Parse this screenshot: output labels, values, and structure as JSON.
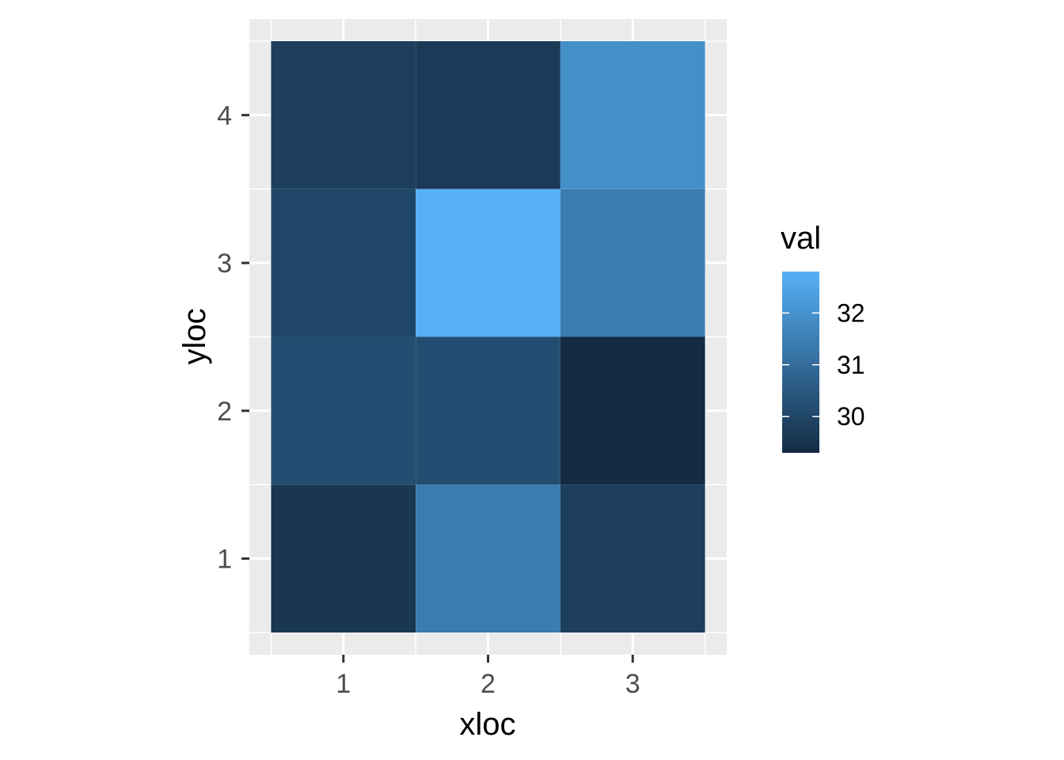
{
  "chart_data": {
    "type": "heatmap",
    "x": [
      1,
      2,
      3
    ],
    "y": [
      1,
      2,
      3,
      4
    ],
    "x_tick_labels": [
      "1",
      "2",
      "3"
    ],
    "y_tick_labels": [
      "1",
      "2",
      "3",
      "4"
    ],
    "xlabel": "xloc",
    "ylabel": "yloc",
    "legend_title": "val",
    "legend_placement": "right",
    "legend_ticks": [
      {
        "value": 30,
        "label": "30"
      },
      {
        "value": 31,
        "label": "31"
      },
      {
        "value": 32,
        "label": "32"
      }
    ],
    "color_range": [
      29.3,
      32.8
    ],
    "color_low": "#132B43",
    "color_high": "#56B1F7",
    "panel_background": "#EBEBEB",
    "grid": true,
    "cells": [
      {
        "x": 1,
        "y": 1,
        "value": 29.6
      },
      {
        "x": 2,
        "y": 1,
        "value": 31.4
      },
      {
        "x": 3,
        "y": 1,
        "value": 29.8
      },
      {
        "x": 1,
        "y": 2,
        "value": 30.2
      },
      {
        "x": 2,
        "y": 2,
        "value": 30.2
      },
      {
        "x": 3,
        "y": 2,
        "value": 29.3
      },
      {
        "x": 1,
        "y": 3,
        "value": 30.0
      },
      {
        "x": 2,
        "y": 3,
        "value": 32.8
      },
      {
        "x": 3,
        "y": 3,
        "value": 31.4
      },
      {
        "x": 1,
        "y": 4,
        "value": 29.8
      },
      {
        "x": 2,
        "y": 4,
        "value": 29.7
      },
      {
        "x": 3,
        "y": 4,
        "value": 31.9
      }
    ]
  }
}
